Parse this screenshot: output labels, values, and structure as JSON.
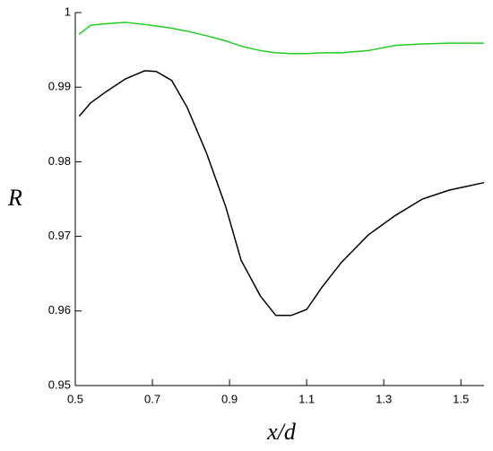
{
  "chart_data": {
    "type": "line",
    "x_label": "x/d",
    "y_label": "R",
    "x": [
      0.51,
      0.54,
      0.58,
      0.63,
      0.68,
      0.71,
      0.75,
      0.79,
      0.84,
      0.89,
      0.93,
      0.98,
      1.02,
      1.06,
      1.1,
      1.14,
      1.19,
      1.26,
      1.33,
      1.4,
      1.47,
      1.56
    ],
    "series": [
      {
        "color": "#000000",
        "values": [
          0.9861,
          0.9879,
          0.9894,
          0.9911,
          0.9922,
          0.9921,
          0.9909,
          0.9873,
          0.9812,
          0.974,
          0.9668,
          0.962,
          0.9594,
          0.9594,
          0.9602,
          0.9632,
          0.9665,
          0.9702,
          0.9728,
          0.975,
          0.9762,
          0.9772
        ]
      },
      {
        "color": "#22cc22",
        "values": [
          0.9971,
          0.9983,
          0.9985,
          0.9987,
          0.9984,
          0.9982,
          0.9979,
          0.9975,
          0.9969,
          0.9962,
          0.9955,
          0.9949,
          0.9946,
          0.9945,
          0.9945,
          0.9946,
          0.9946,
          0.9949,
          0.9956,
          0.9958,
          0.9959,
          0.9959
        ]
      }
    ],
    "xlim": [
      0.5,
      1.56
    ],
    "ylim": [
      0.95,
      1
    ],
    "xticks": [
      0.5,
      0.7,
      0.9,
      1.1,
      1.3,
      1.5
    ],
    "yticks": [
      0.95,
      0.96,
      0.97,
      0.98,
      0.99,
      1
    ]
  }
}
